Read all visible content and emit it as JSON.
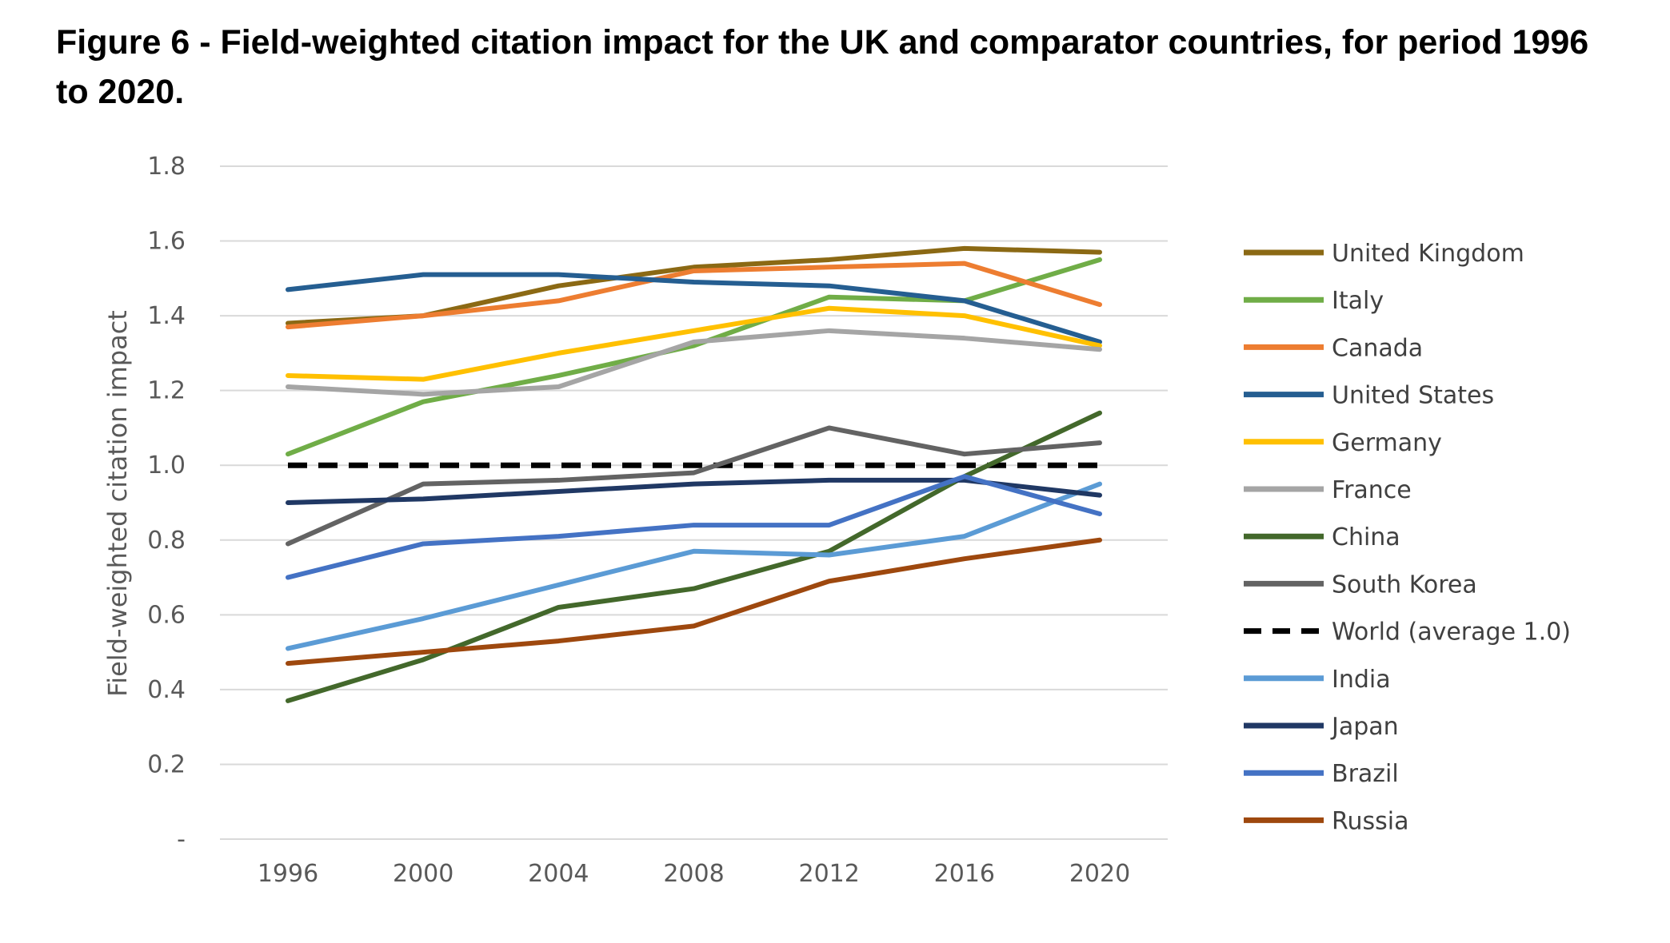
{
  "title": "Figure 6 - Field-weighted citation impact for the UK and comparator countries, for period 1996 to 2020.",
  "chart_data": {
    "type": "line",
    "x": [
      "1996",
      "2000",
      "2004",
      "2008",
      "2012",
      "2016",
      "2020"
    ],
    "ylabel": "Field-weighted citation impact",
    "xlabel": "",
    "ylim": [
      0,
      1.8
    ],
    "yticks": [
      "-",
      "0.2",
      "0.4",
      "0.6",
      "0.8",
      "1.0",
      "1.2",
      "1.4",
      "1.6",
      "1.8"
    ],
    "grid": true,
    "legend_position": "right",
    "series": [
      {
        "name": "United Kingdom",
        "color": "#8B6914",
        "dashed": false,
        "values": [
          1.38,
          1.4,
          1.48,
          1.53,
          1.55,
          1.58,
          1.57
        ]
      },
      {
        "name": "Italy",
        "color": "#70AD47",
        "dashed": false,
        "values": [
          1.03,
          1.17,
          1.24,
          1.32,
          1.45,
          1.44,
          1.55
        ]
      },
      {
        "name": "Canada",
        "color": "#ED7D31",
        "dashed": false,
        "values": [
          1.37,
          1.4,
          1.44,
          1.52,
          1.53,
          1.54,
          1.43
        ]
      },
      {
        "name": "United States",
        "color": "#255E91",
        "dashed": false,
        "values": [
          1.47,
          1.51,
          1.51,
          1.49,
          1.48,
          1.44,
          1.33
        ]
      },
      {
        "name": "Germany",
        "color": "#FFC000",
        "dashed": false,
        "values": [
          1.24,
          1.23,
          1.3,
          1.36,
          1.42,
          1.4,
          1.32
        ]
      },
      {
        "name": "France",
        "color": "#A5A5A5",
        "dashed": false,
        "values": [
          1.21,
          1.19,
          1.21,
          1.33,
          1.36,
          1.34,
          1.31
        ]
      },
      {
        "name": "China",
        "color": "#43682B",
        "dashed": false,
        "values": [
          0.37,
          0.48,
          0.62,
          0.67,
          0.77,
          0.97,
          1.14
        ]
      },
      {
        "name": "South Korea",
        "color": "#636363",
        "dashed": false,
        "values": [
          0.79,
          0.95,
          0.96,
          0.98,
          1.1,
          1.03,
          1.06
        ]
      },
      {
        "name": "World (average 1.0)",
        "color": "#000000",
        "dashed": true,
        "values": [
          1.0,
          1.0,
          1.0,
          1.0,
          1.0,
          1.0,
          1.0
        ]
      },
      {
        "name": "India",
        "color": "#5B9BD5",
        "dashed": false,
        "values": [
          0.51,
          0.59,
          0.68,
          0.77,
          0.76,
          0.81,
          0.95
        ]
      },
      {
        "name": "Japan",
        "color": "#203864",
        "dashed": false,
        "values": [
          0.9,
          0.91,
          0.93,
          0.95,
          0.96,
          0.96,
          0.92
        ]
      },
      {
        "name": "Brazil",
        "color": "#4472C4",
        "dashed": false,
        "values": [
          0.7,
          0.79,
          0.81,
          0.84,
          0.84,
          0.97,
          0.87
        ]
      },
      {
        "name": "Russia",
        "color": "#9E480E",
        "dashed": false,
        "values": [
          0.47,
          0.5,
          0.53,
          0.57,
          0.69,
          0.75,
          0.8
        ]
      }
    ]
  }
}
